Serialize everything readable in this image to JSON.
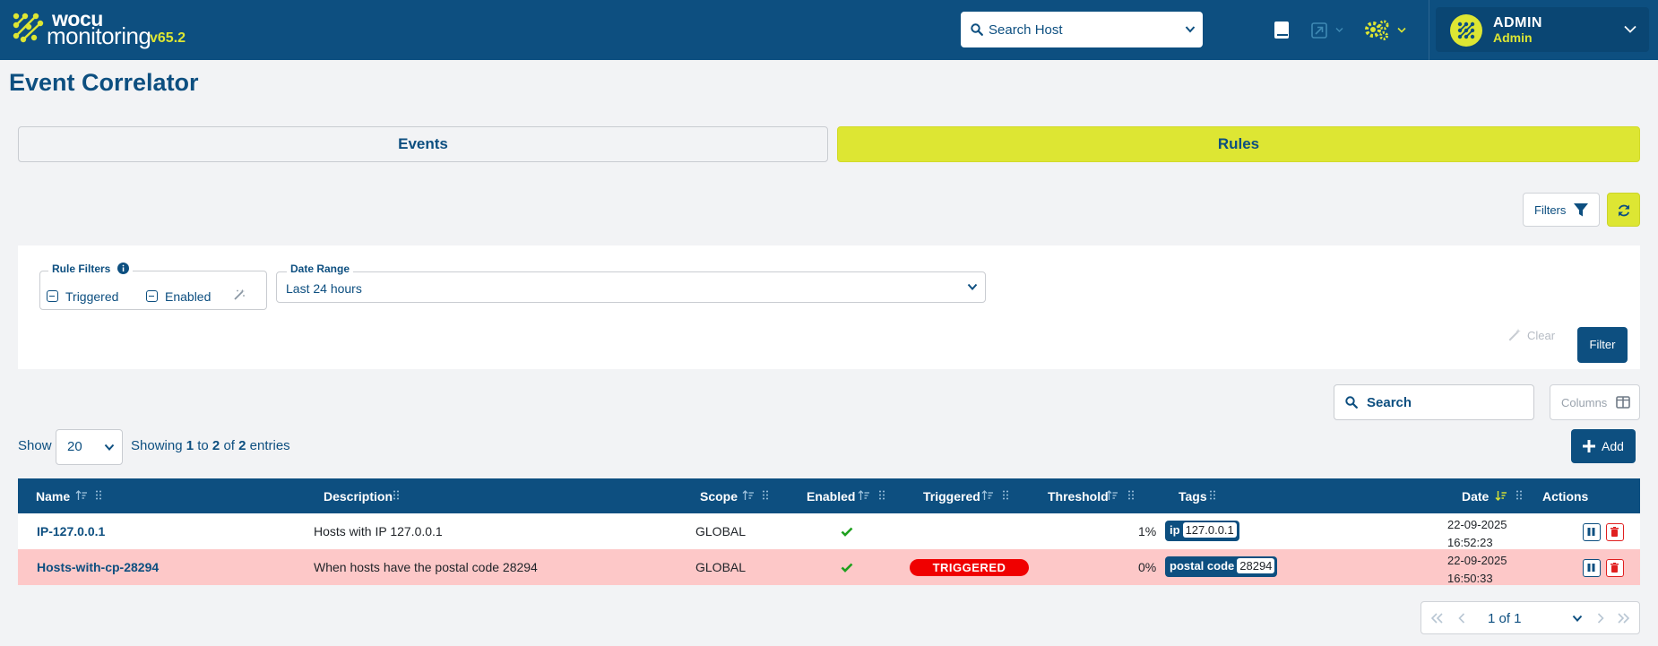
{
  "app": {
    "logo_line1": "wocu",
    "logo_line2": "monitoring",
    "version": "v65.2"
  },
  "navbar": {
    "search_host_label": "Search Host",
    "user_name": "ADMIN",
    "user_role": "Admin"
  },
  "page": {
    "title": "Event Correlator"
  },
  "tabs": [
    {
      "label": "Events",
      "active": false
    },
    {
      "label": "Rules",
      "active": true
    }
  ],
  "toolbar": {
    "filters_label": "Filters"
  },
  "filters_panel": {
    "rule_filters_label": "Rule Filters",
    "triggered_label": "Triggered",
    "enabled_label": "Enabled",
    "date_range_label": "Date Range",
    "date_range_value": "Last 24 hours",
    "clear_label": "Clear",
    "filter_label": "Filter"
  },
  "table_controls": {
    "search_placeholder": "Search",
    "columns_label": "Columns",
    "show_label": "Show",
    "page_size": "20",
    "showing_prefix": "Showing",
    "showing_from": "1",
    "showing_to_word": "to",
    "showing_to": "2",
    "showing_of_word": "of",
    "showing_total": "2",
    "showing_suffix": "entries",
    "add_label": "Add"
  },
  "table": {
    "columns": [
      "Name",
      "Description",
      "Scope",
      "Enabled",
      "Triggered",
      "Threshold",
      "Tags",
      "Date",
      "Actions"
    ],
    "rows": [
      {
        "name": "IP-127.0.0.1",
        "description": "Hosts with IP 127.0.0.1",
        "scope": "GLOBAL",
        "enabled": true,
        "triggered": "",
        "threshold": "1%",
        "tag_key": "ip",
        "tag_value": "127.0.0.1",
        "date_line1": "22-09-2025",
        "date_line2": "16:52:23"
      },
      {
        "name": "Hosts-with-cp-28294",
        "description": "When hosts have the postal code 28294",
        "scope": "GLOBAL",
        "enabled": true,
        "triggered": "TRIGGERED",
        "threshold": "0%",
        "tag_key": "postal code",
        "tag_value": "28294",
        "date_line1": "22-09-2025",
        "date_line2": "16:50:33"
      }
    ]
  },
  "pagination": {
    "page_text": "1 of 1"
  },
  "colors": {
    "primary": "#0d4f80",
    "accent": "#dde633",
    "triggered_row": "#fdc8c8",
    "triggered_badge": "#f00000",
    "delete": "#e02020"
  }
}
